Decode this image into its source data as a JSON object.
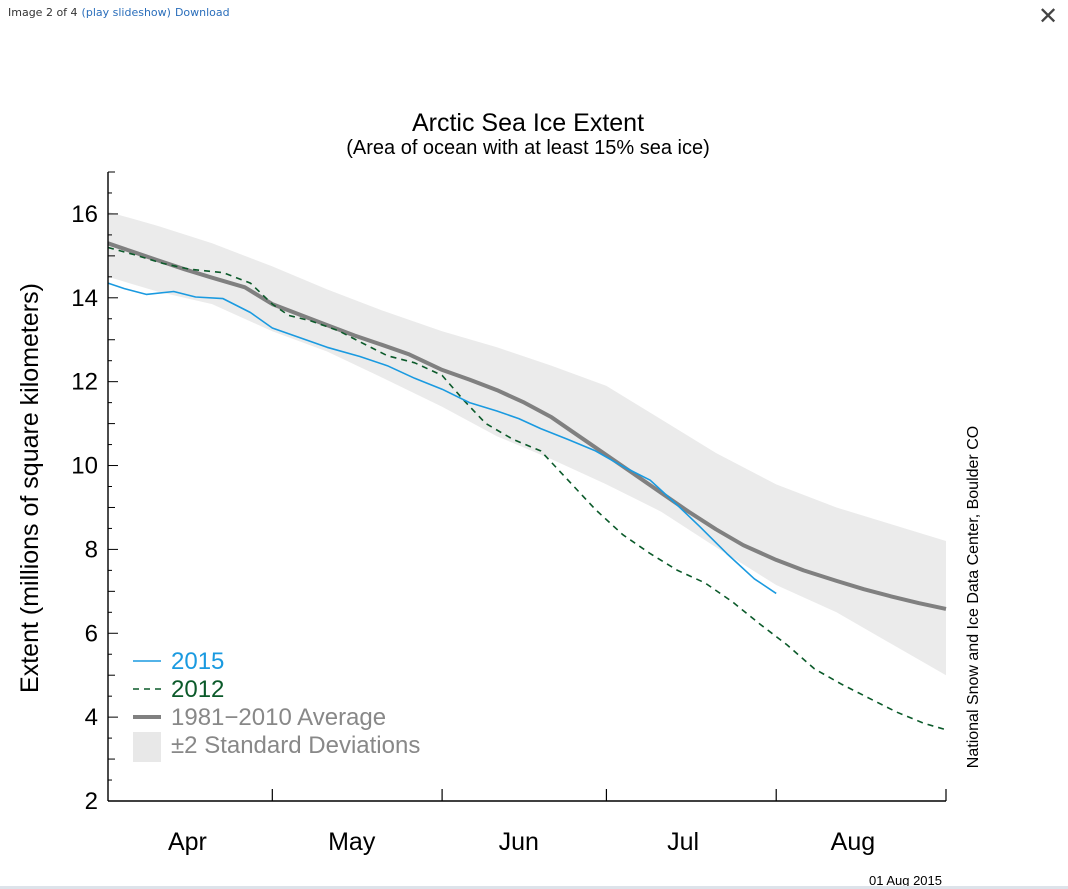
{
  "viewer": {
    "counter": "Image 2 of 4",
    "slideshow_link": "(play slideshow)",
    "download_link": "Download",
    "close_symbol": "✕",
    "close_icon": "close-icon"
  },
  "chart_data": {
    "type": "line",
    "title": "Arctic Sea Ice Extent",
    "subtitle": "(Area of ocean with at least 15% sea ice)",
    "ylabel": "Extent (millions of square kilometers)",
    "xlabel": "",
    "ylim": [
      2,
      17
    ],
    "y_ticks": [
      2,
      4,
      6,
      8,
      10,
      12,
      14,
      16
    ],
    "x_unit": "day of year",
    "xlim": [
      91,
      244
    ],
    "month_labels": [
      {
        "label": "Apr",
        "day": 105.5
      },
      {
        "label": "May",
        "day": 135.5
      },
      {
        "label": "Jun",
        "day": 166
      },
      {
        "label": "Jul",
        "day": 196
      },
      {
        "label": "Aug",
        "day": 227
      }
    ],
    "month_boundaries": [
      121,
      152,
      182,
      213
    ],
    "credit": "National Snow and Ice Data Center, Boulder CO",
    "date_stamp": "01 Aug 2015",
    "grid": false,
    "legend_position": "bottom-left",
    "legend": [
      {
        "label": "2015",
        "color": "#1a9ae0",
        "style": "solid-thin"
      },
      {
        "label": "2012",
        "color": "#0b5a2a",
        "style": "dashed"
      },
      {
        "label": "1981−2010 Average",
        "color": "#808080",
        "style": "solid-thick"
      },
      {
        "label": "±2 Standard Deviations",
        "color": "#e8e8e8",
        "style": "band"
      }
    ],
    "series": [
      {
        "name": "2015",
        "color": "#1a9ae0",
        "x": [
          91,
          94,
          98,
          103,
          107,
          112,
          117,
          121,
          126,
          131,
          137,
          142,
          147,
          152,
          157,
          162,
          166,
          170,
          175,
          180,
          185,
          190,
          195,
          199,
          204,
          209,
          213
        ],
        "y": [
          14.35,
          14.22,
          14.08,
          14.15,
          14.02,
          13.98,
          13.65,
          13.28,
          13.05,
          12.82,
          12.6,
          12.38,
          12.08,
          11.82,
          11.5,
          11.3,
          11.12,
          10.88,
          10.62,
          10.35,
          9.98,
          9.65,
          9.05,
          8.55,
          7.9,
          7.3,
          6.95
        ]
      },
      {
        "name": "2012",
        "color": "#0b5a2a",
        "x": [
          91,
          96,
          101,
          106,
          112,
          117,
          121,
          124,
          128,
          133,
          137,
          142,
          147,
          152,
          156,
          160,
          165,
          170,
          175,
          180,
          185,
          190,
          195,
          200,
          205,
          210,
          215,
          220,
          225,
          230,
          235,
          240,
          244
        ],
        "y": [
          15.2,
          15.02,
          14.82,
          14.68,
          14.6,
          14.35,
          13.85,
          13.58,
          13.45,
          13.22,
          12.95,
          12.62,
          12.45,
          12.15,
          11.55,
          11.0,
          10.62,
          10.35,
          9.65,
          8.95,
          8.35,
          7.9,
          7.5,
          7.2,
          6.75,
          6.22,
          5.72,
          5.15,
          4.78,
          4.45,
          4.12,
          3.85,
          3.7
        ]
      },
      {
        "name": "1981−2010 Average",
        "color": "#808080",
        "x": [
          91,
          95,
          100,
          105,
          110,
          116,
          121,
          126,
          131,
          136,
          141,
          146,
          152,
          157,
          162,
          167,
          172,
          177,
          182,
          187,
          192,
          197,
          202,
          207,
          213,
          218,
          224,
          229,
          234,
          239,
          244
        ],
        "y": [
          15.3,
          15.12,
          14.9,
          14.68,
          14.48,
          14.25,
          13.85,
          13.6,
          13.35,
          13.1,
          12.88,
          12.65,
          12.28,
          12.05,
          11.8,
          11.5,
          11.15,
          10.7,
          10.25,
          9.8,
          9.35,
          8.9,
          8.48,
          8.1,
          7.75,
          7.5,
          7.25,
          7.05,
          6.88,
          6.72,
          6.58
        ]
      }
    ],
    "std_band": {
      "name": "±2 Standard Deviations",
      "color": "#ebebeb",
      "x": [
        91,
        100,
        110,
        121,
        131,
        141,
        152,
        162,
        172,
        182,
        192,
        202,
        213,
        224,
        234,
        244
      ],
      "upper": [
        16.05,
        15.72,
        15.3,
        14.75,
        14.2,
        13.7,
        13.2,
        12.82,
        12.38,
        11.9,
        11.1,
        10.3,
        9.55,
        9.0,
        8.6,
        8.2
      ],
      "lower": [
        14.5,
        14.15,
        13.85,
        13.2,
        12.72,
        12.1,
        11.4,
        10.7,
        10.15,
        9.55,
        8.9,
        8.05,
        7.15,
        6.5,
        5.75,
        5.0
      ]
    }
  }
}
